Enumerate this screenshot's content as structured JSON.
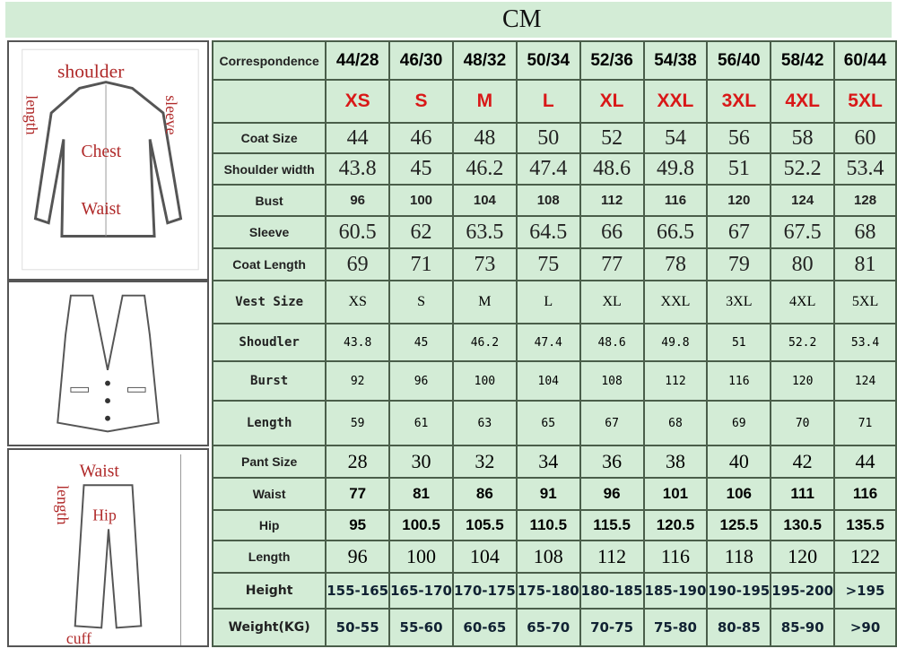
{
  "unit": "CM",
  "correspondence_label": "Correspondence",
  "columns": [
    "44/28",
    "46/30",
    "48/32",
    "50/34",
    "52/36",
    "54/38",
    "56/40",
    "58/42",
    "60/44"
  ],
  "letters": [
    "XS",
    "S",
    "M",
    "L",
    "XL",
    "XXL",
    "3XL",
    "4XL",
    "5XL"
  ],
  "coat": [
    {
      "label": "Coat Size",
      "values": [
        "44",
        "46",
        "48",
        "50",
        "52",
        "54",
        "56",
        "58",
        "60"
      ]
    },
    {
      "label": "Shoulder width",
      "values": [
        "43.8",
        "45",
        "46.2",
        "47.4",
        "48.6",
        "49.8",
        "51",
        "52.2",
        "53.4"
      ]
    },
    {
      "label": "Bust",
      "values": [
        "96",
        "100",
        "104",
        "108",
        "112",
        "116",
        "120",
        "124",
        "128"
      ]
    },
    {
      "label": "Sleeve",
      "values": [
        "60.5",
        "62",
        "63.5",
        "64.5",
        "66",
        "66.5",
        "67",
        "67.5",
        "68"
      ]
    },
    {
      "label": "Coat Length",
      "values": [
        "69",
        "71",
        "73",
        "75",
        "77",
        "78",
        "79",
        "80",
        "81"
      ]
    }
  ],
  "vest": [
    {
      "label": "Vest Size",
      "values": [
        "XS",
        "S",
        "M",
        "L",
        "XL",
        "XXL",
        "3XL",
        "4XL",
        "5XL"
      ]
    },
    {
      "label": "Shoudler",
      "values": [
        "43.8",
        "45",
        "46.2",
        "47.4",
        "48.6",
        "49.8",
        "51",
        "52.2",
        "53.4"
      ]
    },
    {
      "label": "Burst",
      "values": [
        "92",
        "96",
        "100",
        "104",
        "108",
        "112",
        "116",
        "120",
        "124"
      ]
    },
    {
      "label": "Length",
      "values": [
        "59",
        "61",
        "63",
        "65",
        "67",
        "68",
        "69",
        "70",
        "71"
      ]
    }
  ],
  "pant": [
    {
      "label": "Pant Size",
      "values": [
        "28",
        "30",
        "32",
        "34",
        "36",
        "38",
        "40",
        "42",
        "44"
      ]
    },
    {
      "label": "Waist",
      "values": [
        "77",
        "81",
        "86",
        "91",
        "96",
        "101",
        "106",
        "111",
        "116"
      ]
    },
    {
      "label": "Hip",
      "values": [
        "95",
        "100.5",
        "105.5",
        "110.5",
        "115.5",
        "120.5",
        "125.5",
        "130.5",
        "135.5"
      ]
    },
    {
      "label": "Length",
      "values": [
        "96",
        "100",
        "104",
        "108",
        "112",
        "116",
        "118",
        "120",
        "122"
      ]
    }
  ],
  "body": [
    {
      "label": "Height",
      "values": [
        "155-165",
        "165-170",
        "170-175",
        "175-180",
        "180-185",
        "185-190",
        "190-195",
        "195-200",
        ">195"
      ]
    },
    {
      "label": "Weight(KG)",
      "values": [
        "50-55",
        "55-60",
        "60-65",
        "65-70",
        "70-75",
        "75-80",
        "80-85",
        "85-90",
        ">90"
      ]
    }
  ],
  "diagram_labels": {
    "shoulder": "shoulder",
    "length": "length",
    "sleeve": "sleeve",
    "chest": "Chest",
    "waist": "Waist",
    "hip": "Hip",
    "cuff": "cuff"
  },
  "colors": {
    "table_bg": "#d3ecd6",
    "coat_row": "#fbf98c",
    "vest_row": "#f4b184",
    "pant_row": "#c9a2f3",
    "letters": "#d91818"
  }
}
